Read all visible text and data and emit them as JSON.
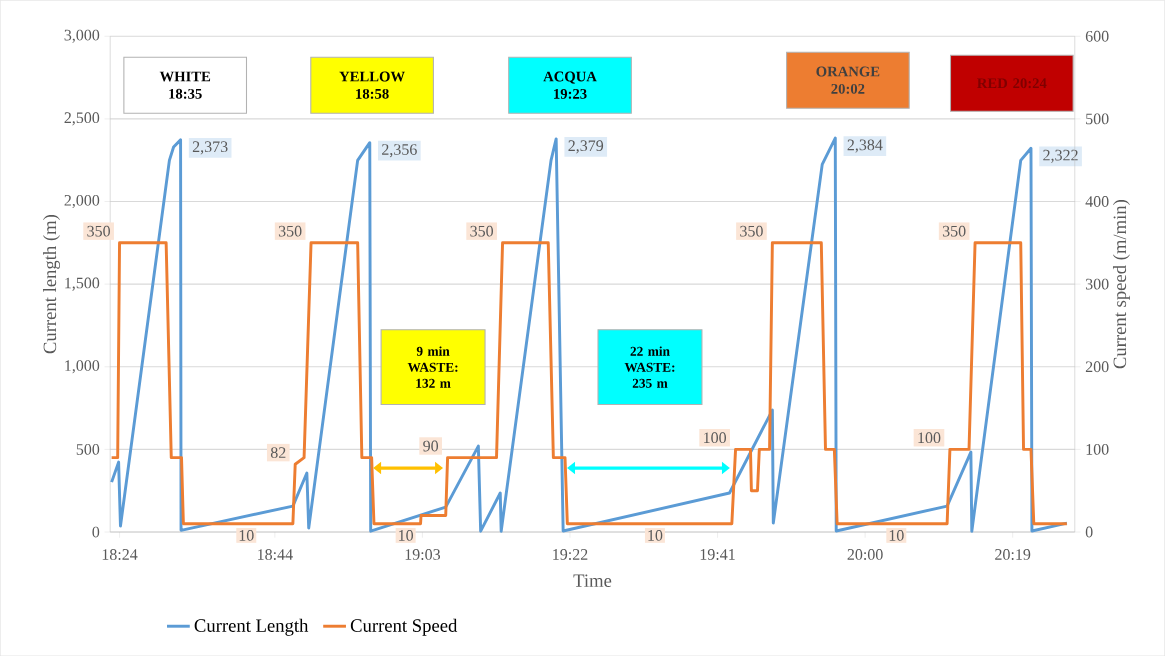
{
  "chart_data": {
    "type": "line",
    "xlabel": "Time",
    "ylabel": "Current length (m)",
    "y2label": "Current speed (m/min)",
    "xlim": [
      18.38,
      20.45
    ],
    "xticks": [
      {
        "value": 18.4,
        "label": "18:24"
      },
      {
        "value": 18.7333,
        "label": "18:44"
      },
      {
        "value": 19.05,
        "label": "19:03"
      },
      {
        "value": 19.3667,
        "label": "19:22"
      },
      {
        "value": 19.6833,
        "label": "19:41"
      },
      {
        "value": 20.0,
        "label": "20:00"
      },
      {
        "value": 20.3167,
        "label": "20:19"
      }
    ],
    "ylim": [
      0,
      3000
    ],
    "yticks": [
      0,
      {
        "value": 500,
        "label": "500"
      },
      {
        "value": 1000,
        "label": "1,000"
      },
      {
        "value": 1500,
        "label": "1,500"
      },
      {
        "value": 2000,
        "label": "2,000"
      },
      {
        "value": 2500,
        "label": "2,500"
      },
      {
        "value": 3000,
        "label": "3,000"
      }
    ],
    "y2lim": [
      0,
      600
    ],
    "y2ticks": [
      0,
      100,
      200,
      300,
      400,
      500,
      600
    ],
    "grid": "y",
    "legend": "bottom",
    "marker": "none",
    "line_style": "solid",
    "series": [
      {
        "name": "Current Length",
        "color": "#5b9bd5",
        "x": [
          18.383,
          18.398,
          18.402,
          18.507,
          18.516,
          18.531,
          18.532,
          18.772,
          18.802,
          18.806,
          18.911,
          18.937,
          18.939,
          19.1,
          19.17,
          19.175,
          19.217,
          19.219,
          19.326,
          19.337,
          19.352,
          19.709,
          19.801,
          19.803,
          19.908,
          19.936,
          19.938,
          20.176,
          20.227,
          20.229,
          20.334,
          20.356,
          20.358,
          20.433
        ],
        "values": [
          302,
          423,
          36,
          2249,
          2330,
          2373,
          10,
          157,
          357,
          24,
          2249,
          2356,
          5,
          151,
          520,
          5,
          236,
          5,
          2249,
          2379,
          6,
          236,
          738,
          54,
          2225,
          2384,
          6,
          157,
          484,
          5,
          2249,
          2322,
          6,
          54
        ],
        "value_labels": [
          null,
          null,
          null,
          null,
          null,
          "2,373",
          null,
          null,
          null,
          null,
          null,
          "2,356",
          null,
          null,
          null,
          null,
          null,
          null,
          null,
          "2,379",
          null,
          null,
          null,
          null,
          null,
          "2,384",
          null,
          null,
          null,
          null,
          null,
          "2,322",
          null,
          null
        ]
      },
      {
        "name": "Current Speed",
        "color": "#ed7d31",
        "axis": "y2",
        "x": [
          18.383,
          18.396,
          18.4,
          18.5,
          18.511,
          18.533,
          18.537,
          18.672,
          18.772,
          18.777,
          18.796,
          18.811,
          18.911,
          18.92,
          18.941,
          18.946,
          19.014,
          19.046,
          19.047,
          19.1,
          19.104,
          19.209,
          19.222,
          19.32,
          19.331,
          19.356,
          19.361,
          19.549,
          19.714,
          19.722,
          19.754,
          19.756,
          19.769,
          19.773,
          19.795,
          19.801,
          19.906,
          19.915,
          19.934,
          19.94,
          20.067,
          20.176,
          20.182,
          20.223,
          20.236,
          20.334,
          20.34,
          20.356,
          20.362,
          20.433
        ],
        "values": [
          90,
          90,
          350,
          350,
          90,
          90,
          10,
          10,
          10,
          82,
          90,
          350,
          350,
          90,
          90,
          10,
          10,
          10,
          20,
          20,
          90,
          90,
          350,
          350,
          90,
          90,
          10,
          10,
          10,
          100,
          100,
          50,
          50,
          100,
          100,
          350,
          350,
          100,
          100,
          10,
          10,
          10,
          100,
          100,
          350,
          350,
          100,
          100,
          10,
          10
        ],
        "value_labels": [
          null,
          null,
          "350",
          null,
          null,
          null,
          null,
          "10",
          null,
          "82",
          null,
          "350",
          null,
          null,
          null,
          null,
          "10",
          null,
          null,
          null,
          "90",
          null,
          "350",
          null,
          null,
          null,
          null,
          "10",
          null,
          "100",
          null,
          null,
          null,
          null,
          null,
          "350",
          null,
          null,
          null,
          null,
          "10",
          null,
          "100",
          null,
          "350",
          null,
          null,
          null,
          null,
          null
        ]
      }
    ],
    "annotations": [
      "**WHITE 18:35**",
      "**YELLOW 18:58**",
      "**ACQUA 19:23**",
      "**ORANGE 20:02**",
      "**RED 20:24**",
      "**9 min WASTE: 132 m**",
      "**22 min WASTE: 235 m**"
    ]
  }
}
